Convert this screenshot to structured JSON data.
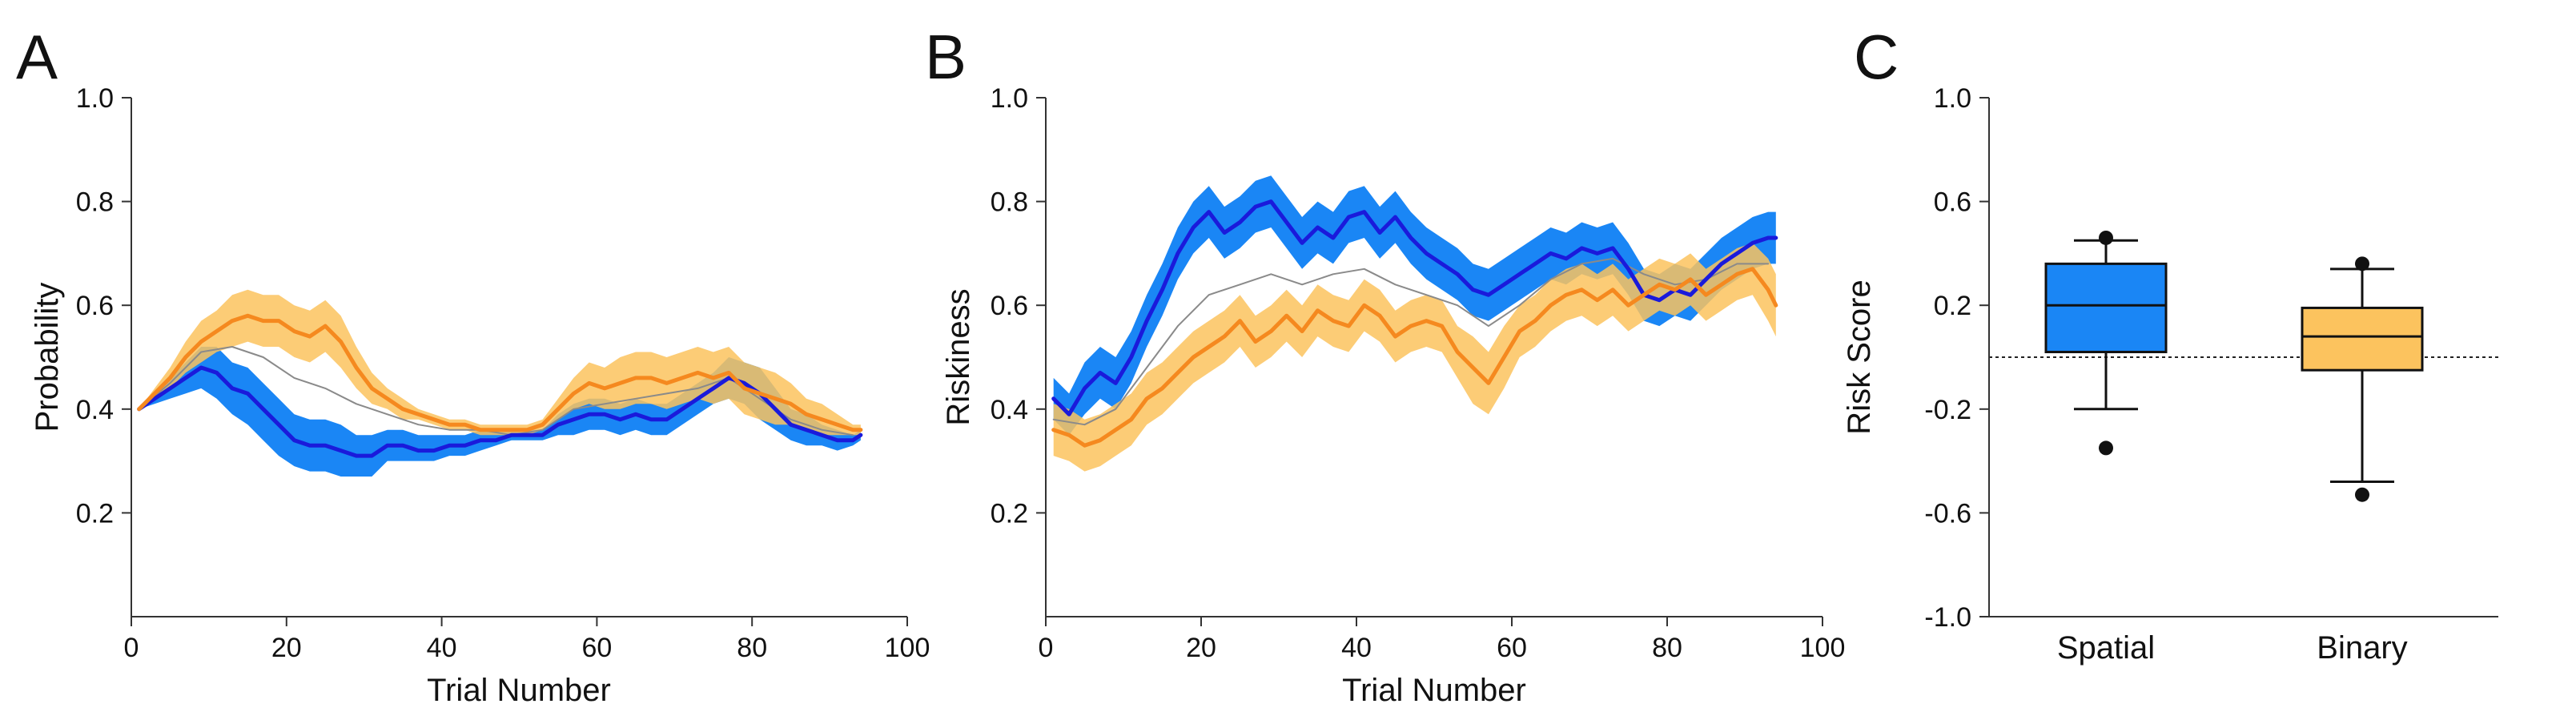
{
  "colors": {
    "spatial_line": "#1a1adb",
    "spatial_band": "#1a86f5",
    "binary_line": "#f5891f",
    "binary_band": "#fcc35e",
    "gray_line": "#8a8a8a",
    "box_spatial": "#1a86f5",
    "box_binary": "#fcc35e"
  },
  "chart_data": [
    {
      "panel": "A",
      "type": "line",
      "xlabel": "Trial Number",
      "ylabel": "Probability",
      "xlim": [
        0,
        100
      ],
      "ylim": [
        0,
        1
      ],
      "x_ticks": [
        "0",
        "20",
        "40",
        "60",
        "80",
        "100"
      ],
      "x_tick_values": [
        0,
        20,
        40,
        60,
        80,
        100
      ],
      "y_ticks": [
        "0.2",
        "0.4",
        "0.6",
        "0.8",
        "1.0"
      ],
      "y_tick_values": [
        0.2,
        0.4,
        0.6,
        0.8,
        1.0
      ],
      "series": [
        {
          "key": "spatial",
          "x": [
            1,
            3,
            5,
            7,
            9,
            11,
            13,
            15,
            17,
            19,
            21,
            23,
            25,
            27,
            29,
            31,
            33,
            35,
            37,
            39,
            41,
            43,
            45,
            47,
            49,
            51,
            53,
            55,
            57,
            59,
            61,
            63,
            65,
            67,
            69,
            71,
            73,
            75,
            77,
            79,
            81,
            83,
            85,
            87,
            89,
            91,
            93,
            94
          ],
          "y": [
            0.4,
            0.42,
            0.44,
            0.46,
            0.48,
            0.47,
            0.44,
            0.43,
            0.4,
            0.37,
            0.34,
            0.33,
            0.33,
            0.32,
            0.31,
            0.31,
            0.33,
            0.33,
            0.32,
            0.32,
            0.33,
            0.33,
            0.34,
            0.34,
            0.35,
            0.35,
            0.35,
            0.37,
            0.38,
            0.39,
            0.39,
            0.38,
            0.39,
            0.38,
            0.38,
            0.4,
            0.42,
            0.44,
            0.46,
            0.45,
            0.43,
            0.4,
            0.37,
            0.36,
            0.35,
            0.34,
            0.34,
            0.35
          ],
          "lower": [
            0.4,
            0.41,
            0.42,
            0.43,
            0.44,
            0.42,
            0.39,
            0.37,
            0.34,
            0.31,
            0.29,
            0.28,
            0.28,
            0.27,
            0.27,
            0.27,
            0.3,
            0.3,
            0.3,
            0.3,
            0.31,
            0.31,
            0.32,
            0.33,
            0.34,
            0.34,
            0.34,
            0.35,
            0.35,
            0.36,
            0.36,
            0.35,
            0.36,
            0.35,
            0.35,
            0.37,
            0.39,
            0.41,
            0.42,
            0.41,
            0.38,
            0.36,
            0.34,
            0.33,
            0.33,
            0.32,
            0.33,
            0.34
          ],
          "upper": [
            0.4,
            0.43,
            0.46,
            0.49,
            0.52,
            0.52,
            0.49,
            0.48,
            0.45,
            0.42,
            0.39,
            0.38,
            0.38,
            0.37,
            0.35,
            0.35,
            0.36,
            0.36,
            0.35,
            0.35,
            0.35,
            0.35,
            0.36,
            0.36,
            0.36,
            0.36,
            0.36,
            0.39,
            0.41,
            0.42,
            0.42,
            0.41,
            0.42,
            0.41,
            0.41,
            0.43,
            0.45,
            0.47,
            0.5,
            0.49,
            0.48,
            0.44,
            0.4,
            0.39,
            0.37,
            0.36,
            0.35,
            0.36
          ]
        },
        {
          "key": "binary",
          "x": [
            1,
            3,
            5,
            7,
            9,
            11,
            13,
            15,
            17,
            19,
            21,
            23,
            25,
            27,
            29,
            31,
            33,
            35,
            37,
            39,
            41,
            43,
            45,
            47,
            49,
            51,
            53,
            55,
            57,
            59,
            61,
            63,
            65,
            67,
            69,
            71,
            73,
            75,
            77,
            79,
            81,
            83,
            85,
            87,
            89,
            91,
            93,
            94
          ],
          "y": [
            0.4,
            0.43,
            0.46,
            0.5,
            0.53,
            0.55,
            0.57,
            0.58,
            0.57,
            0.57,
            0.55,
            0.54,
            0.56,
            0.53,
            0.48,
            0.44,
            0.42,
            0.4,
            0.39,
            0.38,
            0.37,
            0.37,
            0.36,
            0.36,
            0.36,
            0.36,
            0.37,
            0.4,
            0.43,
            0.45,
            0.44,
            0.45,
            0.46,
            0.46,
            0.45,
            0.46,
            0.47,
            0.46,
            0.47,
            0.44,
            0.43,
            0.42,
            0.41,
            0.39,
            0.38,
            0.37,
            0.36,
            0.36
          ],
          "lower": [
            0.4,
            0.42,
            0.44,
            0.47,
            0.49,
            0.51,
            0.52,
            0.53,
            0.52,
            0.52,
            0.5,
            0.49,
            0.51,
            0.48,
            0.44,
            0.41,
            0.4,
            0.38,
            0.38,
            0.37,
            0.36,
            0.36,
            0.35,
            0.35,
            0.35,
            0.35,
            0.36,
            0.38,
            0.4,
            0.41,
            0.4,
            0.4,
            0.41,
            0.41,
            0.4,
            0.41,
            0.42,
            0.41,
            0.42,
            0.39,
            0.38,
            0.37,
            0.37,
            0.36,
            0.35,
            0.35,
            0.35,
            0.35
          ],
          "upper": [
            0.4,
            0.44,
            0.48,
            0.53,
            0.57,
            0.59,
            0.62,
            0.63,
            0.62,
            0.62,
            0.6,
            0.59,
            0.61,
            0.58,
            0.52,
            0.47,
            0.44,
            0.42,
            0.4,
            0.39,
            0.38,
            0.38,
            0.37,
            0.37,
            0.37,
            0.37,
            0.38,
            0.42,
            0.46,
            0.49,
            0.48,
            0.5,
            0.51,
            0.51,
            0.5,
            0.51,
            0.52,
            0.51,
            0.52,
            0.49,
            0.48,
            0.47,
            0.45,
            0.42,
            0.41,
            0.39,
            0.37,
            0.37
          ]
        },
        {
          "key": "gray",
          "x": [
            1,
            5,
            9,
            13,
            17,
            21,
            25,
            29,
            33,
            37,
            41,
            45,
            49,
            53,
            57,
            61,
            65,
            69,
            73,
            77,
            81,
            85,
            89,
            93
          ],
          "y": [
            0.4,
            0.45,
            0.51,
            0.52,
            0.5,
            0.46,
            0.44,
            0.41,
            0.39,
            0.37,
            0.36,
            0.36,
            0.35,
            0.36,
            0.4,
            0.41,
            0.42,
            0.43,
            0.44,
            0.46,
            0.42,
            0.38,
            0.36,
            0.35
          ]
        }
      ]
    },
    {
      "panel": "B",
      "type": "line",
      "xlabel": "Trial Number",
      "ylabel": "Riskiness",
      "xlim": [
        0,
        100
      ],
      "ylim": [
        0,
        1
      ],
      "x_ticks": [
        "0",
        "20",
        "40",
        "60",
        "80",
        "100"
      ],
      "x_tick_values": [
        0,
        20,
        40,
        60,
        80,
        100
      ],
      "y_ticks": [
        "0.2",
        "0.4",
        "0.6",
        "0.8",
        "1.0"
      ],
      "y_tick_values": [
        0.2,
        0.4,
        0.6,
        0.8,
        1.0
      ],
      "series": [
        {
          "key": "spatial",
          "x": [
            1,
            3,
            5,
            7,
            9,
            11,
            13,
            15,
            17,
            19,
            21,
            23,
            25,
            27,
            29,
            31,
            33,
            35,
            37,
            39,
            41,
            43,
            45,
            47,
            49,
            51,
            53,
            55,
            57,
            59,
            61,
            63,
            65,
            67,
            69,
            71,
            73,
            75,
            77,
            79,
            81,
            83,
            85,
            87,
            89,
            91,
            93,
            94
          ],
          "y": [
            0.42,
            0.39,
            0.44,
            0.47,
            0.45,
            0.5,
            0.57,
            0.63,
            0.7,
            0.75,
            0.78,
            0.74,
            0.76,
            0.79,
            0.8,
            0.76,
            0.72,
            0.75,
            0.73,
            0.77,
            0.78,
            0.74,
            0.77,
            0.73,
            0.7,
            0.68,
            0.66,
            0.63,
            0.62,
            0.64,
            0.66,
            0.68,
            0.7,
            0.69,
            0.71,
            0.7,
            0.71,
            0.67,
            0.62,
            0.61,
            0.63,
            0.62,
            0.65,
            0.68,
            0.7,
            0.72,
            0.73,
            0.73
          ],
          "lower": [
            0.38,
            0.35,
            0.39,
            0.42,
            0.4,
            0.45,
            0.52,
            0.58,
            0.65,
            0.7,
            0.73,
            0.69,
            0.71,
            0.74,
            0.75,
            0.71,
            0.67,
            0.7,
            0.68,
            0.72,
            0.73,
            0.69,
            0.72,
            0.68,
            0.65,
            0.63,
            0.61,
            0.58,
            0.57,
            0.59,
            0.61,
            0.63,
            0.65,
            0.64,
            0.66,
            0.65,
            0.66,
            0.62,
            0.57,
            0.56,
            0.58,
            0.57,
            0.6,
            0.63,
            0.65,
            0.67,
            0.68,
            0.68
          ],
          "upper": [
            0.46,
            0.43,
            0.49,
            0.52,
            0.5,
            0.55,
            0.62,
            0.68,
            0.75,
            0.8,
            0.83,
            0.79,
            0.81,
            0.84,
            0.85,
            0.81,
            0.77,
            0.8,
            0.78,
            0.82,
            0.83,
            0.79,
            0.82,
            0.78,
            0.75,
            0.73,
            0.71,
            0.68,
            0.67,
            0.69,
            0.71,
            0.73,
            0.75,
            0.74,
            0.76,
            0.75,
            0.76,
            0.72,
            0.67,
            0.66,
            0.68,
            0.67,
            0.7,
            0.73,
            0.75,
            0.77,
            0.78,
            0.78
          ]
        },
        {
          "key": "binary",
          "x": [
            1,
            3,
            5,
            7,
            9,
            11,
            13,
            15,
            17,
            19,
            21,
            23,
            25,
            27,
            29,
            31,
            33,
            35,
            37,
            39,
            41,
            43,
            45,
            47,
            49,
            51,
            53,
            55,
            57,
            59,
            61,
            63,
            65,
            67,
            69,
            71,
            73,
            75,
            77,
            79,
            81,
            83,
            85,
            87,
            89,
            91,
            93,
            94
          ],
          "y": [
            0.36,
            0.35,
            0.33,
            0.34,
            0.36,
            0.38,
            0.42,
            0.44,
            0.47,
            0.5,
            0.52,
            0.54,
            0.57,
            0.53,
            0.55,
            0.58,
            0.55,
            0.59,
            0.57,
            0.56,
            0.6,
            0.58,
            0.54,
            0.56,
            0.57,
            0.56,
            0.51,
            0.48,
            0.45,
            0.5,
            0.55,
            0.57,
            0.6,
            0.62,
            0.63,
            0.61,
            0.63,
            0.6,
            0.62,
            0.64,
            0.63,
            0.65,
            0.62,
            0.64,
            0.66,
            0.67,
            0.63,
            0.6
          ],
          "lower": [
            0.31,
            0.3,
            0.28,
            0.29,
            0.31,
            0.33,
            0.37,
            0.39,
            0.42,
            0.45,
            0.47,
            0.49,
            0.52,
            0.48,
            0.5,
            0.53,
            0.5,
            0.54,
            0.52,
            0.51,
            0.55,
            0.53,
            0.49,
            0.51,
            0.52,
            0.51,
            0.46,
            0.41,
            0.39,
            0.44,
            0.5,
            0.52,
            0.55,
            0.57,
            0.58,
            0.56,
            0.58,
            0.55,
            0.57,
            0.59,
            0.58,
            0.6,
            0.57,
            0.59,
            0.61,
            0.62,
            0.57,
            0.54
          ],
          "upper": [
            0.41,
            0.4,
            0.38,
            0.39,
            0.41,
            0.43,
            0.47,
            0.49,
            0.52,
            0.55,
            0.57,
            0.59,
            0.62,
            0.58,
            0.6,
            0.63,
            0.6,
            0.64,
            0.62,
            0.61,
            0.65,
            0.63,
            0.59,
            0.61,
            0.62,
            0.61,
            0.56,
            0.54,
            0.51,
            0.56,
            0.6,
            0.62,
            0.65,
            0.67,
            0.68,
            0.66,
            0.68,
            0.65,
            0.67,
            0.69,
            0.68,
            0.7,
            0.67,
            0.69,
            0.71,
            0.72,
            0.69,
            0.66
          ]
        },
        {
          "key": "gray",
          "x": [
            1,
            5,
            9,
            13,
            17,
            21,
            25,
            29,
            33,
            37,
            41,
            45,
            49,
            53,
            57,
            61,
            65,
            69,
            73,
            77,
            81,
            85,
            89,
            93
          ],
          "y": [
            0.38,
            0.37,
            0.4,
            0.48,
            0.56,
            0.62,
            0.64,
            0.66,
            0.64,
            0.66,
            0.67,
            0.64,
            0.62,
            0.6,
            0.56,
            0.6,
            0.65,
            0.68,
            0.69,
            0.66,
            0.64,
            0.65,
            0.68,
            0.68
          ]
        }
      ]
    },
    {
      "panel": "C",
      "type": "box",
      "ylabel": "Risk Score",
      "ylim": [
        -1,
        1
      ],
      "y_ticks": [
        "-1.0",
        "-0.6",
        "-0.2",
        "0.2",
        "0.6",
        "1.0"
      ],
      "y_tick_values": [
        -1.0,
        -0.6,
        -0.2,
        0.2,
        0.6,
        1.0
      ],
      "reference_line": 0,
      "categories": [
        "Spatial",
        "Binary"
      ],
      "boxes": [
        {
          "category": "Spatial",
          "whisker_low": -0.2,
          "q1": 0.02,
          "median": 0.2,
          "q3": 0.36,
          "whisker_high": 0.45,
          "outliers": [
            -0.35,
            0.46
          ]
        },
        {
          "category": "Binary",
          "whisker_low": -0.48,
          "q1": -0.05,
          "median": 0.08,
          "q3": 0.19,
          "whisker_high": 0.34,
          "outliers": [
            -0.53,
            0.36
          ]
        }
      ]
    }
  ]
}
